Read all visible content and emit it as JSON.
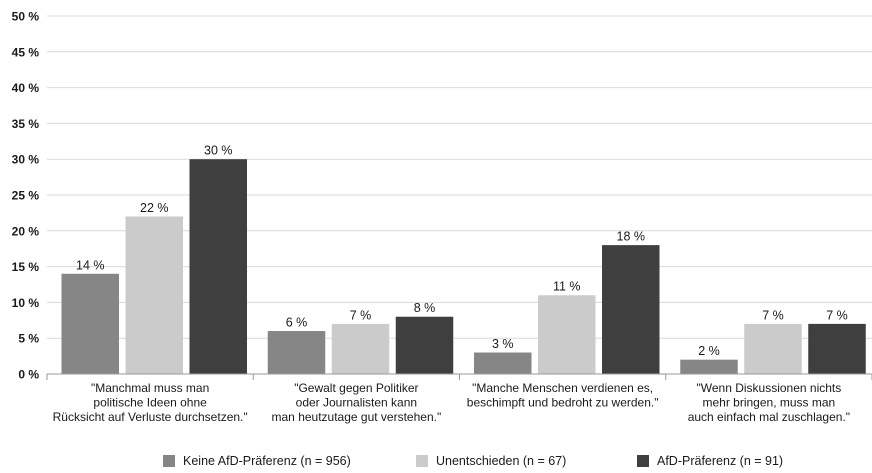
{
  "chart_data": {
    "type": "bar",
    "categories": [
      [
        "\"Manchmal muss man",
        "politische Ideen ohne",
        "Rücksicht auf Verluste durchsetzen.\""
      ],
      [
        "\"Gewalt gegen Politiker",
        "oder Journalisten kann",
        "man heutzutage gut verstehen.\""
      ],
      [
        "\"Manche Menschen verdienen es,",
        "beschimpft und bedroht zu werden.\""
      ],
      [
        "\"Wenn Diskussionen nichts",
        "mehr bringen, muss man",
        "auch einfach mal zuschlagen.\""
      ]
    ],
    "series": [
      {
        "name": "Keine AfD-Präferenz (n = 956)",
        "color": "#868686",
        "values": [
          14,
          6,
          3,
          2
        ]
      },
      {
        "name": "Unentschieden (n = 67)",
        "color": "#cbcbcb",
        "values": [
          22,
          7,
          11,
          7
        ]
      },
      {
        "name": "AfD-Präferenz (n = 91)",
        "color": "#3f3f3f",
        "values": [
          30,
          8,
          18,
          7
        ]
      }
    ],
    "value_suffix": " %",
    "ylim": [
      0,
      50
    ],
    "yticks": [
      0,
      5,
      10,
      15,
      20,
      25,
      30,
      35,
      40,
      45,
      50
    ],
    "ytick_labels": [
      "0 %",
      "5 %",
      "10 %",
      "15 %",
      "20 %",
      "25 %",
      "30 %",
      "35 %",
      "40 %",
      "45 %",
      "50 %"
    ],
    "grid": true,
    "legend_position": "bottom",
    "title": "",
    "xlabel": "",
    "ylabel": ""
  }
}
